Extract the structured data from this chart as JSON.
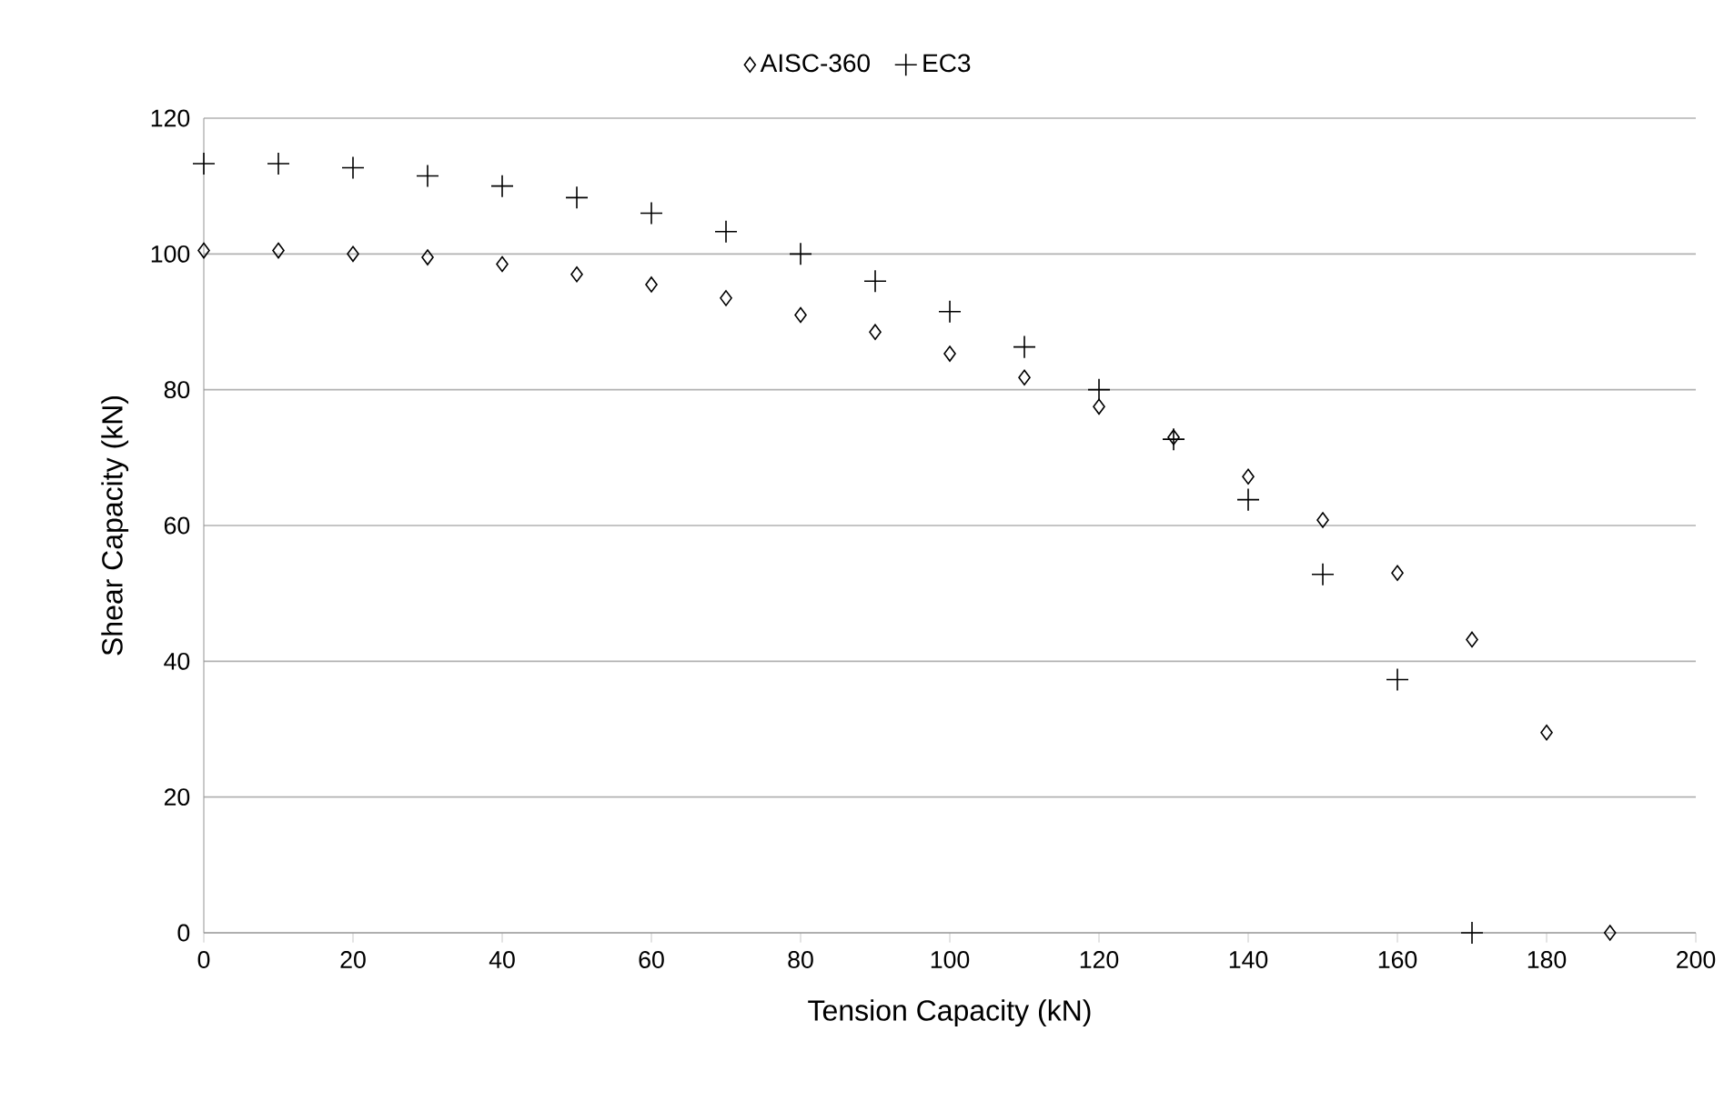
{
  "chart_data": {
    "type": "scatter",
    "xlabel": "Tension Capacity (kN)",
    "ylabel": "Shear Capacity (kN)",
    "xlim": [
      0,
      200
    ],
    "ylim": [
      0,
      120
    ],
    "xticks": [
      0,
      20,
      40,
      60,
      80,
      100,
      120,
      140,
      160,
      180,
      200
    ],
    "yticks": [
      0,
      20,
      40,
      60,
      80,
      100,
      120
    ],
    "grid": "y",
    "legend": "top",
    "series": [
      {
        "name": "AISC-360",
        "color": "#000000",
        "marker": "diamond",
        "x": [
          0,
          10,
          20,
          30,
          40,
          50,
          60,
          70,
          80,
          90,
          100,
          110,
          120,
          130,
          140,
          150,
          160,
          170,
          180,
          188.5
        ],
        "values": [
          100.5,
          100.5,
          100,
          99.5,
          98.5,
          97,
          95.5,
          93.5,
          91,
          88.5,
          85.3,
          81.8,
          77.5,
          73,
          67.2,
          60.8,
          53,
          43.2,
          29.5,
          0
        ]
      },
      {
        "name": "EC3",
        "color": "#000000",
        "marker": "cross",
        "x": [
          0,
          10,
          20,
          30,
          40,
          50,
          60,
          70,
          80,
          90,
          100,
          110,
          120,
          130,
          140,
          150,
          160,
          170
        ],
        "values": [
          113.3,
          113.3,
          112.7,
          111.5,
          110,
          108.3,
          106,
          103.3,
          100,
          96,
          91.5,
          86.3,
          80,
          72.7,
          63.8,
          52.8,
          37.3,
          0
        ]
      }
    ]
  }
}
